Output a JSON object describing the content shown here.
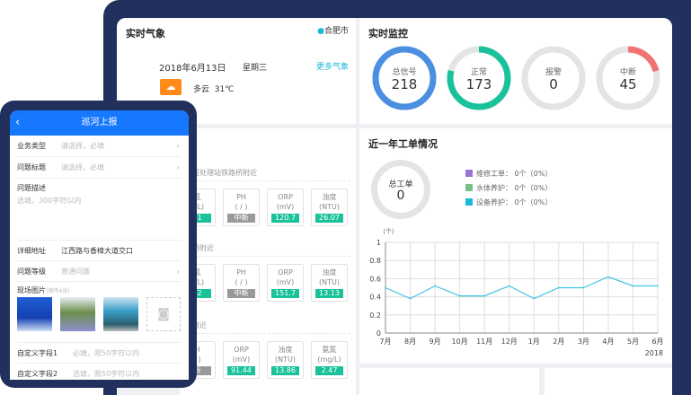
{
  "weather": {
    "title": "实时气象",
    "city": "合肥市",
    "date": "2018年6月13日",
    "weekday": "星期三",
    "more": "更多气象",
    "condition": "多云",
    "temp": "31℃"
  },
  "monitor": {
    "title": "实时监控",
    "rings": [
      {
        "label": "总信号",
        "value": "218",
        "fraction": 1,
        "color": "#4a8fe0"
      },
      {
        "label": "正常",
        "value": "173",
        "fraction": 0.79,
        "color": "#19c29b"
      },
      {
        "label": "报警",
        "value": "0",
        "fraction": 0,
        "color": "#e0e0e0"
      },
      {
        "label": "中断",
        "value": "45",
        "fraction": 0.21,
        "color": "#f07474"
      }
    ]
  },
  "stations": [
    {
      "name": "河处理站铁路桥附近",
      "cards": [
        {
          "name": "氮",
          "unit": "g/L)",
          "value": "71"
        },
        {
          "name": "PH",
          "unit": "( / )",
          "value": "中断",
          "off": true
        },
        {
          "name": "ORP",
          "unit": "(mV)",
          "value": "120.7"
        },
        {
          "name": "浊度",
          "unit": "(NTU)",
          "value": "26.07"
        }
      ]
    },
    {
      "name": "桥附近",
      "cards": [
        {
          "name": "氮",
          "unit": "g/L)",
          "value": "42"
        },
        {
          "name": "PH",
          "unit": "( / )",
          "value": "中断",
          "off": true
        },
        {
          "name": "ORP",
          "unit": "(mV)",
          "value": "151.7"
        },
        {
          "name": "浊度",
          "unit": "(NTU)",
          "value": "13.13"
        }
      ]
    },
    {
      "name": "附近",
      "cards": [
        {
          "name": "H",
          "unit": "/ )",
          "value": "断",
          "off": true
        },
        {
          "name": "ORP",
          "unit": "(mV)",
          "value": "91.44"
        },
        {
          "name": "浊度",
          "unit": "(NTU)",
          "value": "13.86"
        },
        {
          "name": "氨氮",
          "unit": "(mg/L)",
          "value": "2.47"
        }
      ]
    }
  ],
  "workorders": {
    "title": "近一年工单情况",
    "total_label": "总工单",
    "total": "0",
    "legend": [
      {
        "label": "维修工单：",
        "value": "0个（0%）",
        "color": "#9b72d8"
      },
      {
        "label": "水体养护：",
        "value": "0个（0%）",
        "color": "#7cbf85"
      },
      {
        "label": "设备养护：",
        "value": "0个（0%）",
        "color": "#17b9dc"
      }
    ]
  },
  "chart_data": {
    "type": "line",
    "ylabel": "（个）",
    "categories": [
      "7月",
      "8月",
      "9月",
      "10月",
      "11月",
      "12月",
      "1月",
      "2月",
      "3月",
      "4月",
      "5月",
      "6月"
    ],
    "xnote": "2018",
    "values": [
      0.5,
      0.38,
      0.52,
      0.41,
      0.41,
      0.52,
      0.38,
      0.5,
      0.5,
      0.62,
      0.52,
      0.52
    ],
    "ylim": [
      0,
      1
    ],
    "yticks": [
      "0",
      "0.2",
      "0.4",
      "0.6",
      "0.8",
      "1"
    ],
    "grid": true,
    "color": "#3cc3e6"
  },
  "phone": {
    "title": "巡河上报",
    "rows": [
      {
        "label": "业务类型",
        "placeholder": "请选择，必填",
        "chevron": true
      },
      {
        "label": "问题标题",
        "placeholder": "请选择，必填",
        "chevron": true
      }
    ],
    "desc_label": "问题描述",
    "desc_placeholder": "选填，300字符以内",
    "address_label": "详细地址",
    "address_value": "江西路与香樟大道交口",
    "level_label": "问题等级",
    "level_placeholder": "普通问题",
    "photos_label": "现场图片",
    "photos_hint": "(限传4张)",
    "custom1_label": "自定义字段1",
    "custom1_placeholder": "必填，限50字符以内",
    "custom2_label": "自定义字段2",
    "custom2_placeholder": "选填，限50字符以内"
  }
}
